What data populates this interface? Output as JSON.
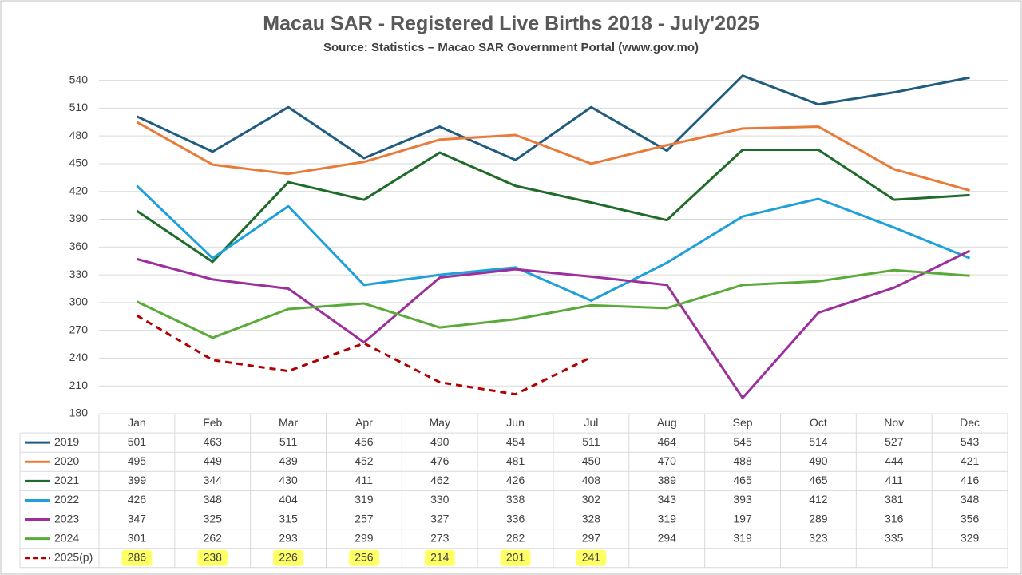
{
  "chart_data": {
    "type": "line",
    "title": "Macau SAR - Registered Live Births 2018 - July'2025",
    "subtitle": "Source: Statistics – Macao SAR Government Portal (www.gov.mo)",
    "categories": [
      "Jan",
      "Feb",
      "Mar",
      "Apr",
      "May",
      "Jun",
      "Jul",
      "Aug",
      "Sep",
      "Oct",
      "Nov",
      "Dec"
    ],
    "ylim": [
      180,
      550
    ],
    "yticks": [
      180,
      210,
      240,
      270,
      300,
      330,
      360,
      390,
      420,
      450,
      480,
      510,
      540
    ],
    "grid": true,
    "series": [
      {
        "name": "2019",
        "color": "#1f5c7f",
        "values": [
          501,
          463,
          511,
          456,
          490,
          454,
          511,
          464,
          545,
          514,
          527,
          543
        ]
      },
      {
        "name": "2020",
        "color": "#e97b3a",
        "values": [
          495,
          449,
          439,
          452,
          476,
          481,
          450,
          470,
          488,
          490,
          444,
          421
        ]
      },
      {
        "name": "2021",
        "color": "#1e6b2a",
        "values": [
          399,
          344,
          430,
          411,
          462,
          426,
          408,
          389,
          465,
          465,
          411,
          416
        ]
      },
      {
        "name": "2022",
        "color": "#1fa0d8",
        "values": [
          426,
          348,
          404,
          319,
          330,
          338,
          302,
          343,
          393,
          412,
          381,
          348
        ]
      },
      {
        "name": "2023",
        "color": "#9b2f9b",
        "values": [
          347,
          325,
          315,
          257,
          327,
          336,
          328,
          319,
          197,
          289,
          316,
          356
        ]
      },
      {
        "name": "2024",
        "color": "#5aaa3a",
        "values": [
          301,
          262,
          293,
          299,
          273,
          282,
          297,
          294,
          319,
          323,
          335,
          329
        ]
      },
      {
        "name": "2025(p)",
        "color": "#b00000",
        "dashed": true,
        "label_highlight": "#ffff66",
        "values": [
          286,
          238,
          226,
          256,
          214,
          201,
          241,
          null,
          null,
          null,
          null,
          null
        ]
      }
    ]
  }
}
